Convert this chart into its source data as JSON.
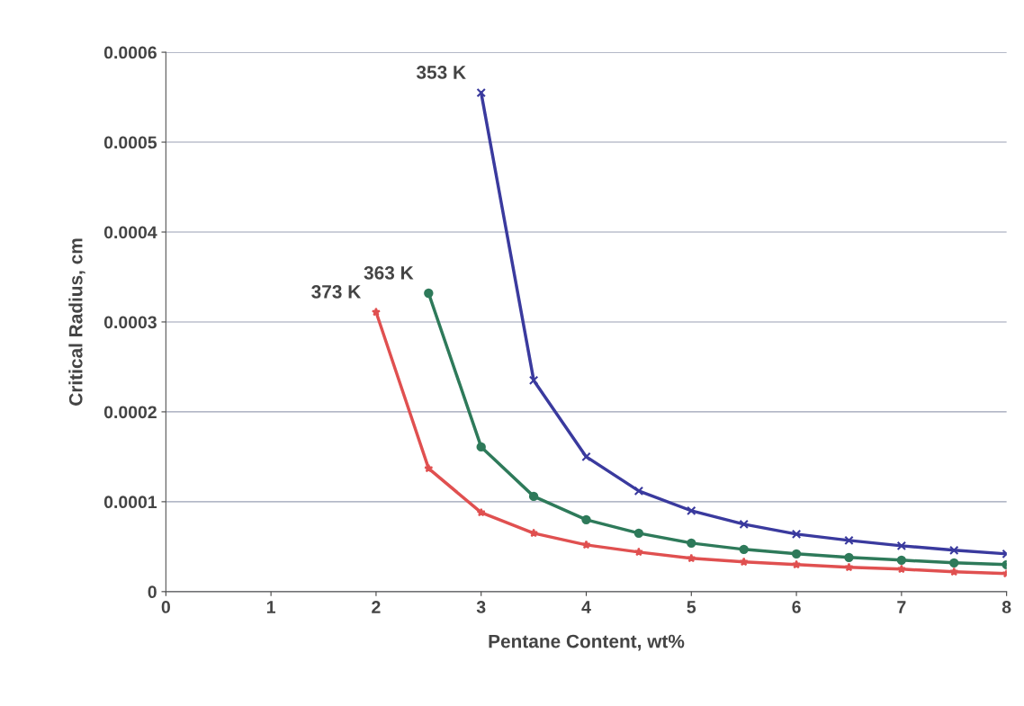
{
  "chart_data": {
    "type": "line",
    "xlabel": "Pentane Content, wt%",
    "ylabel": "Critical Radius, cm",
    "xlim": [
      0,
      8
    ],
    "xticks": [
      0,
      1,
      2,
      3,
      4,
      5,
      6,
      7,
      8
    ],
    "ylim": [
      0,
      0.0006
    ],
    "yticks": [
      0,
      0.0001,
      0.0002,
      0.0003,
      0.0004,
      0.0005,
      0.0006
    ],
    "grid": "y",
    "legend": false,
    "line_style": "solid",
    "series": [
      {
        "color": "#3a3a9e",
        "marker": "cross",
        "x": [
          3,
          3.5,
          4,
          4.5,
          5,
          5.5,
          6,
          6.5,
          7,
          7.5,
          8
        ],
        "values": [
          0.000555,
          0.000235,
          0.00015,
          0.000112,
          9e-05,
          7.5e-05,
          6.4e-05,
          5.7e-05,
          5.1e-05,
          4.6e-05,
          4.2e-05
        ]
      },
      {
        "color": "#2e7a5a",
        "marker": "circle",
        "x": [
          2.5,
          3,
          3.5,
          4,
          4.5,
          5,
          5.5,
          6,
          6.5,
          7,
          7.5,
          8
        ],
        "values": [
          0.000332,
          0.000161,
          0.000106,
          8e-05,
          6.5e-05,
          5.4e-05,
          4.7e-05,
          4.2e-05,
          3.8e-05,
          3.5e-05,
          3.2e-05,
          3e-05
        ]
      },
      {
        "color": "#e05050",
        "marker": "star",
        "x": [
          2,
          2.5,
          3,
          3.5,
          4,
          4.5,
          5,
          5.5,
          6,
          6.5,
          7,
          7.5,
          8
        ],
        "values": [
          0.000311,
          0.000137,
          8.8e-05,
          6.5e-05,
          5.2e-05,
          4.4e-05,
          3.7e-05,
          3.3e-05,
          3e-05,
          2.7e-05,
          2.5e-05,
          2.2e-05,
          2e-05
        ]
      }
    ],
    "annotations": [
      {
        "text": "353 K",
        "x": 3,
        "y": 0.000555
      },
      {
        "text": "363 K",
        "x": 2.5,
        "y": 0.000332
      },
      {
        "text": "373 K",
        "x": 2,
        "y": 0.000311
      }
    ]
  }
}
